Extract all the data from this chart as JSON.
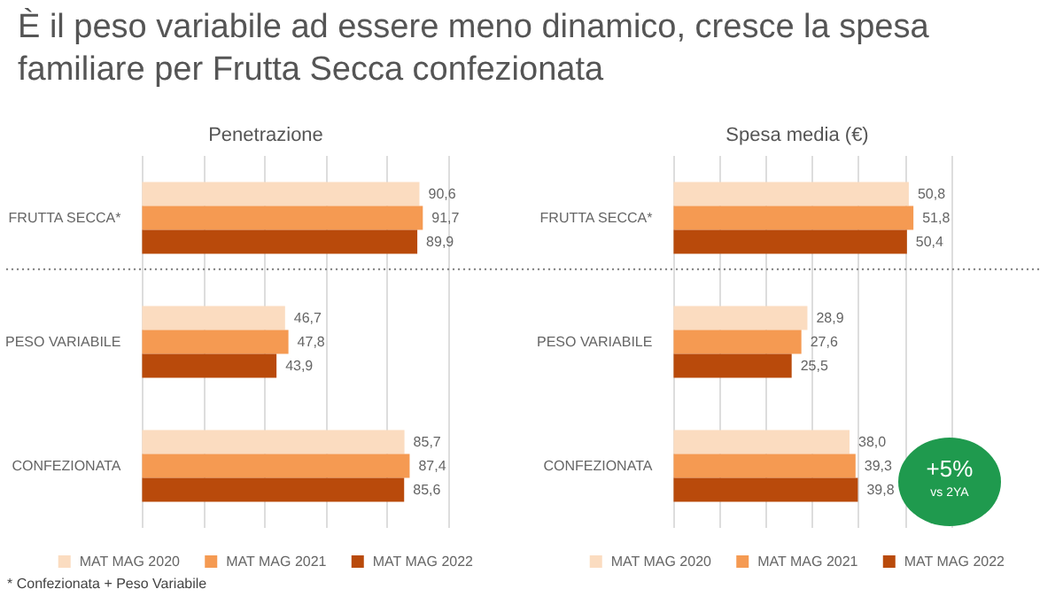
{
  "chart_data": [
    {
      "type": "bar",
      "orientation": "horizontal",
      "title": "È il peso variabile ad essere meno dinamico, cresce la spesa familiare per Frutta Secca confezionata",
      "subtitle": "Penetrazione",
      "categories": [
        "FRUTTA SECCA*",
        "PESO VARIABILE",
        "CONFEZIONATA"
      ],
      "series": [
        {
          "name": "MAT MAG 2020",
          "color": "#fbdcc0",
          "values": [
            90.6,
            46.7,
            85.7
          ],
          "value_labels": [
            "90,6",
            "46,7",
            "85,7"
          ]
        },
        {
          "name": "MAT MAG 2021",
          "color": "#f59a52",
          "values": [
            91.7,
            47.8,
            87.4
          ],
          "value_labels": [
            "91,7",
            "47,8",
            "87,4"
          ]
        },
        {
          "name": "MAT MAG 2022",
          "color": "#b94a0b",
          "values": [
            89.9,
            43.9,
            85.6
          ],
          "value_labels": [
            "89,9",
            "43,9",
            "85,6"
          ]
        }
      ],
      "xlim": [
        0,
        100
      ],
      "xticks": [
        {
          "value": 0,
          "label": null
        },
        {
          "value": 20,
          "label": null
        },
        {
          "value": 40,
          "label": null
        },
        {
          "value": 60,
          "label": null
        },
        {
          "value": 80,
          "label": null
        },
        {
          "value": 100,
          "label": null
        }
      ],
      "tick_labels": "y",
      "grid": "x",
      "legend": "bottom",
      "annotations": [
        "* Confezionata + Peso Variabile"
      ]
    },
    {
      "type": "bar",
      "orientation": "horizontal",
      "subtitle": "Spesa media (€)",
      "categories": [
        "FRUTTA SECCA*",
        "PESO VARIABILE",
        "CONFEZIONATA"
      ],
      "series": [
        {
          "name": "MAT MAG 2020",
          "color": "#fbdcc0",
          "values": [
            50.8,
            28.9,
            38.0
          ],
          "value_labels": [
            "50,8",
            "28,9",
            "38,0"
          ]
        },
        {
          "name": "MAT MAG 2021",
          "color": "#f59a52",
          "values": [
            51.8,
            27.6,
            39.3
          ],
          "value_labels": [
            "51,8",
            "27,6",
            "39,3"
          ]
        },
        {
          "name": "MAT MAG 2022",
          "color": "#b94a0b",
          "values": [
            50.4,
            25.5,
            39.8
          ],
          "value_labels": [
            "50,4",
            "25,5",
            "39,8"
          ]
        }
      ],
      "xlim": [
        0,
        60
      ],
      "xticks": [
        {
          "value": 0,
          "label": null
        },
        {
          "value": 10,
          "label": null
        },
        {
          "value": 20,
          "label": null
        },
        {
          "value": 30,
          "label": null
        },
        {
          "value": 40,
          "label": null
        },
        {
          "value": 50,
          "label": null
        },
        {
          "value": 60,
          "label": null
        }
      ],
      "tick_labels": "y",
      "grid": "x",
      "legend": "bottom",
      "annotations": [
        "+5%",
        "vs 2YA"
      ]
    }
  ]
}
